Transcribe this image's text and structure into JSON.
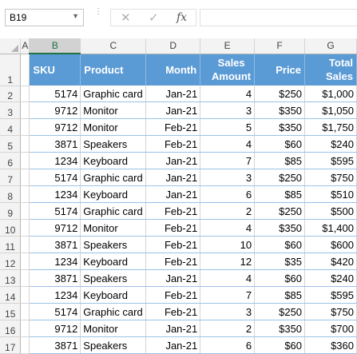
{
  "formula_bar": {
    "name_box": "B19",
    "name_box_dropdown": "▼",
    "more_icon": "⋮",
    "cancel_icon": "✕",
    "confirm_icon": "✓",
    "fx_label": "fx",
    "formula": ""
  },
  "columns": [
    "A",
    "B",
    "C",
    "D",
    "E",
    "F",
    "G"
  ],
  "selected_column": "B",
  "header_row": {
    "row_number": "1",
    "sku": "SKU",
    "product": "Product",
    "month": "Month",
    "sales_amount_1": "Sales",
    "sales_amount_2": "Amount",
    "price": "Price",
    "total_sales_1": "Total",
    "total_sales_2": "Sales"
  },
  "rows": [
    {
      "row": "2",
      "sku": "5174",
      "product": "Graphic card",
      "month": "Jan-21",
      "amount": "4",
      "price": "$250",
      "total": "$1,000"
    },
    {
      "row": "3",
      "sku": "9712",
      "product": "Monitor",
      "month": "Jan-21",
      "amount": "3",
      "price": "$350",
      "total": "$1,050"
    },
    {
      "row": "4",
      "sku": "9712",
      "product": "Monitor",
      "month": "Feb-21",
      "amount": "5",
      "price": "$350",
      "total": "$1,750"
    },
    {
      "row": "5",
      "sku": "3871",
      "product": "Speakers",
      "month": "Feb-21",
      "amount": "4",
      "price": "$60",
      "total": "$240"
    },
    {
      "row": "6",
      "sku": "1234",
      "product": "Keyboard",
      "month": "Jan-21",
      "amount": "7",
      "price": "$85",
      "total": "$595"
    },
    {
      "row": "7",
      "sku": "5174",
      "product": "Graphic card",
      "month": "Jan-21",
      "amount": "3",
      "price": "$250",
      "total": "$750"
    },
    {
      "row": "8",
      "sku": "1234",
      "product": "Keyboard",
      "month": "Jan-21",
      "amount": "6",
      "price": "$85",
      "total": "$510"
    },
    {
      "row": "9",
      "sku": "5174",
      "product": "Graphic card",
      "month": "Feb-21",
      "amount": "2",
      "price": "$250",
      "total": "$500"
    },
    {
      "row": "10",
      "sku": "9712",
      "product": "Monitor",
      "month": "Feb-21",
      "amount": "4",
      "price": "$350",
      "total": "$1,400"
    },
    {
      "row": "11",
      "sku": "3871",
      "product": "Speakers",
      "month": "Feb-21",
      "amount": "10",
      "price": "$60",
      "total": "$600"
    },
    {
      "row": "12",
      "sku": "1234",
      "product": "Keyboard",
      "month": "Feb-21",
      "amount": "12",
      "price": "$35",
      "total": "$420"
    },
    {
      "row": "13",
      "sku": "3871",
      "product": "Speakers",
      "month": "Jan-21",
      "amount": "4",
      "price": "$60",
      "total": "$240"
    },
    {
      "row": "14",
      "sku": "1234",
      "product": "Keyboard",
      "month": "Feb-21",
      "amount": "7",
      "price": "$85",
      "total": "$595"
    },
    {
      "row": "15",
      "sku": "5174",
      "product": "Graphic card",
      "month": "Feb-21",
      "amount": "3",
      "price": "$250",
      "total": "$750"
    },
    {
      "row": "16",
      "sku": "9712",
      "product": "Monitor",
      "month": "Jan-21",
      "amount": "2",
      "price": "$350",
      "total": "$700"
    },
    {
      "row": "17",
      "sku": "3871",
      "product": "Speakers",
      "month": "Jan-21",
      "amount": "6",
      "price": "$60",
      "total": "$360"
    }
  ],
  "colors": {
    "header_fill": "#5b9bd5",
    "header_text": "#ffffff",
    "row_border": "#9bc2e6",
    "selection_green": "#217346"
  }
}
